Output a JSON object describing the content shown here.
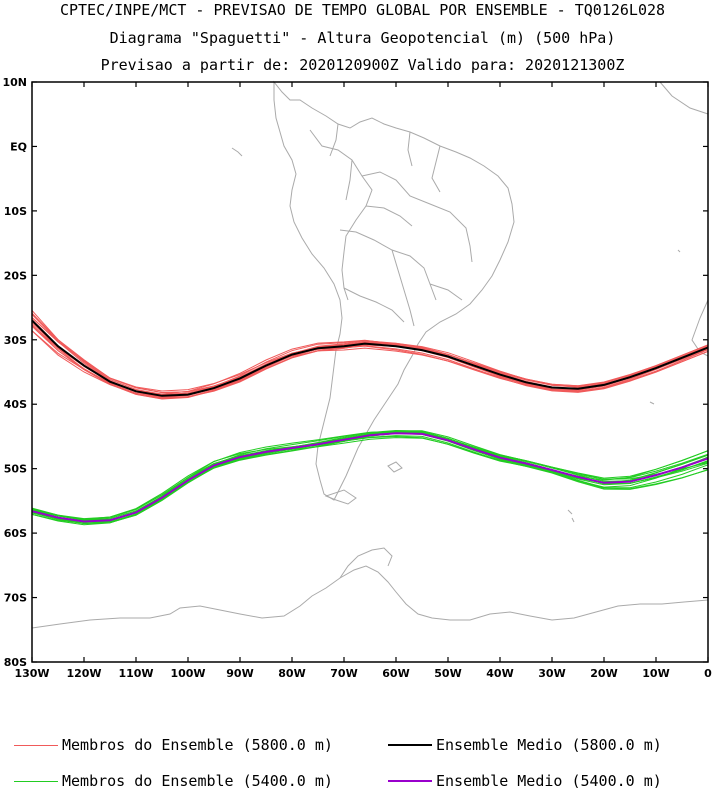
{
  "title_lines": [
    "CPTEC/INPE/MCT - PREVISAO DE TEMPO GLOBAL POR ENSEMBLE - TQ0126L028",
    "Diagrama \"Spaguetti\" - Altura Geopotencial (m) (500 hPa)",
    "Previsao a partir de: 2020120900Z  Valido para: 2020121300Z"
  ],
  "colors": {
    "members_5800": "#f05a5a",
    "mean_5800": "#000000",
    "members_5400": "#22cc22",
    "mean_5400": "#9900cc",
    "coast": "#aaaaaa"
  },
  "legend": {
    "members_5800": "Membros do Ensemble (5800.0 m)",
    "mean_5800": "Ensemble Medio (5800.0 m)",
    "members_5400": "Membros do Ensemble (5400.0 m)",
    "mean_5400": "Ensemble Medio (5400.0 m)"
  },
  "map": {
    "lon_range": [
      -130,
      0
    ],
    "lat_range": [
      -80,
      10
    ],
    "lon_ticks": [
      {
        "value": -130,
        "label": "130W"
      },
      {
        "value": -120,
        "label": "120W"
      },
      {
        "value": -110,
        "label": "110W"
      },
      {
        "value": -100,
        "label": "100W"
      },
      {
        "value": -90,
        "label": "90W"
      },
      {
        "value": -80,
        "label": "80W"
      },
      {
        "value": -70,
        "label": "70W"
      },
      {
        "value": -60,
        "label": "60W"
      },
      {
        "value": -50,
        "label": "50W"
      },
      {
        "value": -40,
        "label": "40W"
      },
      {
        "value": -30,
        "label": "30W"
      },
      {
        "value": -20,
        "label": "20W"
      },
      {
        "value": -10,
        "label": "10W"
      },
      {
        "value": 0,
        "label": "0"
      }
    ],
    "lat_ticks": [
      {
        "value": 10,
        "label": "10N"
      },
      {
        "value": 0,
        "label": "EQ"
      },
      {
        "value": -10,
        "label": "10S"
      },
      {
        "value": -20,
        "label": "20S"
      },
      {
        "value": -30,
        "label": "30S"
      },
      {
        "value": -40,
        "label": "40S"
      },
      {
        "value": -50,
        "label": "50S"
      },
      {
        "value": -60,
        "label": "60S"
      },
      {
        "value": -70,
        "label": "70S"
      },
      {
        "value": -80,
        "label": "80S"
      }
    ],
    "mean_5800": [
      [
        -130,
        -27
      ],
      [
        -125,
        -31
      ],
      [
        -120,
        -34
      ],
      [
        -115,
        -36.5
      ],
      [
        -110,
        -38
      ],
      [
        -105,
        -38.7
      ],
      [
        -100,
        -38.5
      ],
      [
        -95,
        -37.5
      ],
      [
        -90,
        -36
      ],
      [
        -85,
        -34
      ],
      [
        -80,
        -32.3
      ],
      [
        -75,
        -31.3
      ],
      [
        -70,
        -31
      ],
      [
        -66,
        -30.6
      ],
      [
        -60,
        -31
      ],
      [
        -55,
        -31.6
      ],
      [
        -50,
        -32.6
      ],
      [
        -45,
        -34
      ],
      [
        -40,
        -35.4
      ],
      [
        -35,
        -36.6
      ],
      [
        -30,
        -37.4
      ],
      [
        -25,
        -37.6
      ],
      [
        -20,
        -37
      ],
      [
        -15,
        -35.8
      ],
      [
        -10,
        -34.4
      ],
      [
        -5,
        -32.8
      ],
      [
        0,
        -31.2
      ]
    ],
    "mean_5400": [
      [
        -130,
        -56.6
      ],
      [
        -125,
        -57.6
      ],
      [
        -120,
        -58.2
      ],
      [
        -115,
        -58
      ],
      [
        -110,
        -56.8
      ],
      [
        -105,
        -54.5
      ],
      [
        -100,
        -51.8
      ],
      [
        -95,
        -49.5
      ],
      [
        -90,
        -48.2
      ],
      [
        -85,
        -47.4
      ],
      [
        -80,
        -46.8
      ],
      [
        -75,
        -46.2
      ],
      [
        -70,
        -45.5
      ],
      [
        -65,
        -44.8
      ],
      [
        -60,
        -44.5
      ],
      [
        -55,
        -44.6
      ],
      [
        -50,
        -45.6
      ],
      [
        -45,
        -47
      ],
      [
        -40,
        -48.3
      ],
      [
        -35,
        -49.2
      ],
      [
        -30,
        -50.2
      ],
      [
        -25,
        -51.3
      ],
      [
        -20,
        -52.2
      ],
      [
        -15,
        -52
      ],
      [
        -10,
        -51
      ],
      [
        -5,
        -49.8
      ],
      [
        0,
        -48.4
      ]
    ]
  }
}
